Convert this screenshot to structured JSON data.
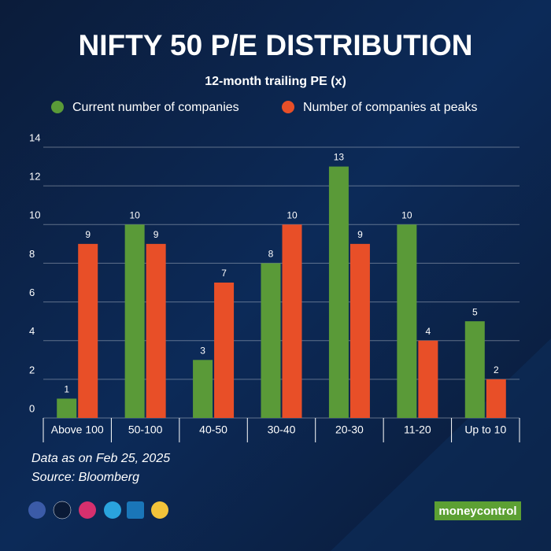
{
  "chart_data": {
    "type": "bar",
    "title": "NIFTY 50 P/E DISTRIBUTION",
    "subtitle": "12-month trailing PE (x)",
    "categories": [
      "Above 100",
      "50-100",
      "40-50",
      "30-40",
      "20-30",
      "11-20",
      "Up to 10"
    ],
    "series": [
      {
        "name": "Current number of companies",
        "color": "#5a9a38",
        "values": [
          1,
          10,
          3,
          8,
          13,
          10,
          5
        ]
      },
      {
        "name": "Number of companies at peaks",
        "color": "#e84f28",
        "values": [
          9,
          9,
          7,
          10,
          9,
          4,
          2
        ]
      }
    ],
    "ylim": [
      0,
      14
    ],
    "yticks": [
      0,
      2,
      4,
      6,
      8,
      10,
      12,
      14
    ],
    "grid": true,
    "legend": "top",
    "notes": [
      "Data as on Feb 25, 2025",
      "Source: Bloomberg"
    ],
    "brand": "moneycontrol"
  }
}
